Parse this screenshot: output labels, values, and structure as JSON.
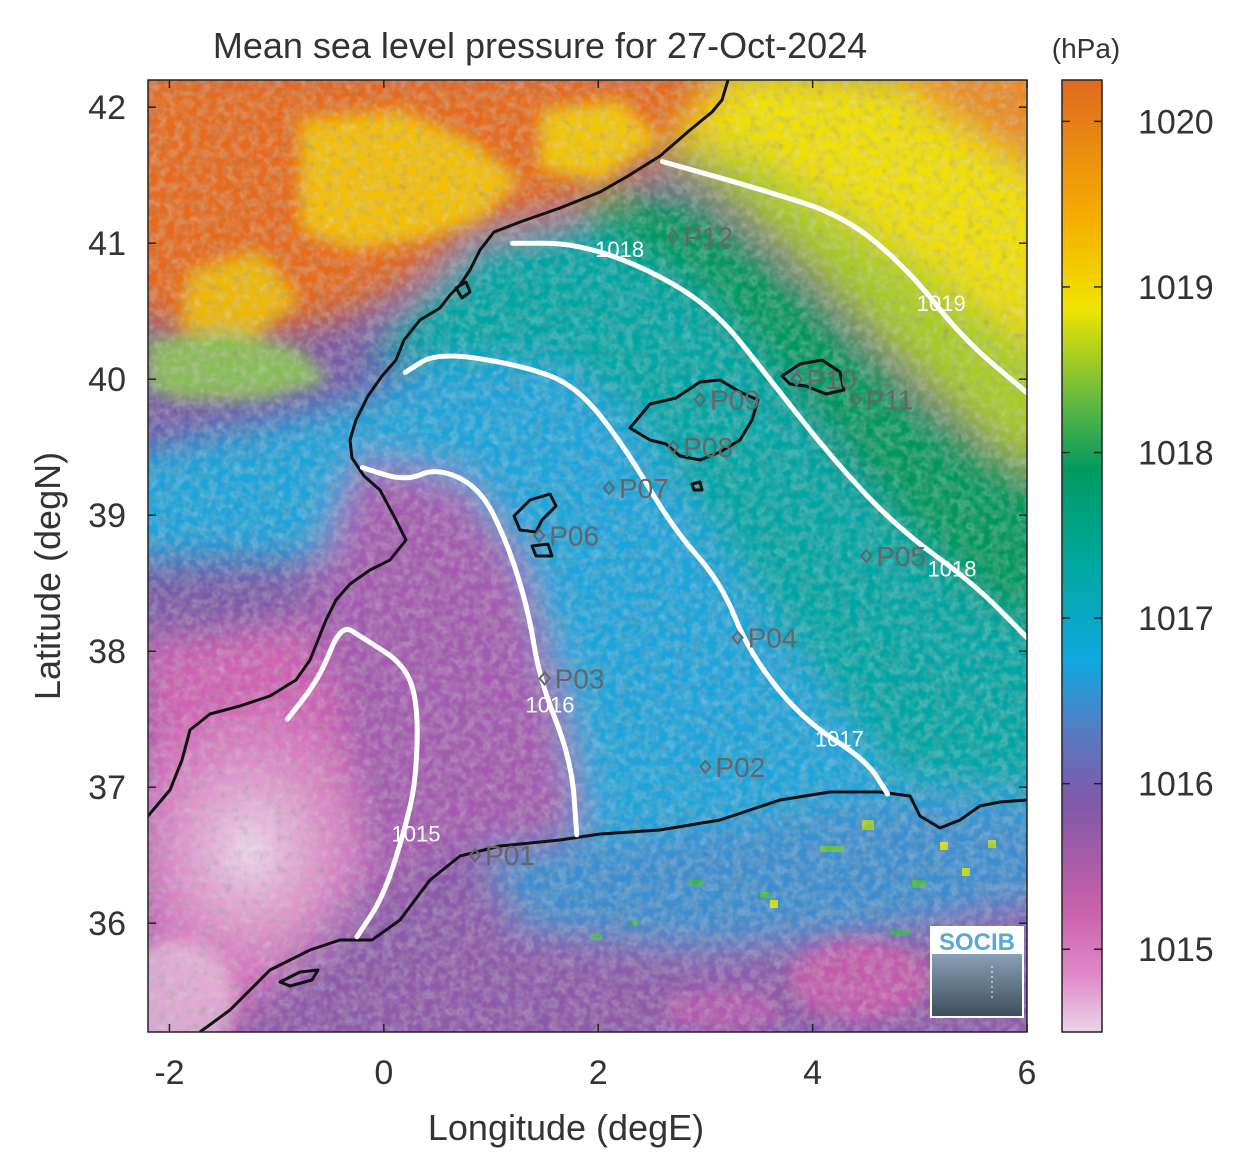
{
  "figure": {
    "title": "Mean sea level pressure for 27-Oct-2024",
    "xlabel": "Longitude (degE)",
    "ylabel": "Latitude (degN)",
    "colorbar_label": "(hPa)",
    "logo_text": "SOCIB"
  },
  "chart_data": {
    "type": "heatmap",
    "title": "Mean sea level pressure for 27-Oct-2024",
    "xlabel": "Longitude (degE)",
    "ylabel": "Latitude (degN)",
    "xlim": [
      -2.2,
      6.0
    ],
    "ylim": [
      35.2,
      42.2
    ],
    "x_ticks": [
      -2,
      0,
      2,
      4,
      6
    ],
    "y_ticks": [
      36,
      37,
      38,
      39,
      40,
      41,
      42
    ],
    "colorbar": {
      "label": "(hPa)",
      "range": [
        1014.5,
        1020.25
      ],
      "ticks": [
        1015,
        1016,
        1017,
        1018,
        1019,
        1020
      ],
      "colors": [
        "#e8c8e0",
        "#d060b0",
        "#7a5aa8",
        "#00a8e0",
        "#009a60",
        "#f0e000",
        "#e06a20"
      ]
    },
    "contours": [
      {
        "label": "1015",
        "value": 1015,
        "label_at": [
          0.3,
          36.6
        ],
        "points": [
          [
            -0.25,
            35.9
          ],
          [
            0.0,
            36.2
          ],
          [
            0.2,
            36.7
          ],
          [
            0.3,
            37.05
          ],
          [
            0.32,
            37.6
          ],
          [
            0.2,
            37.9
          ],
          [
            -0.2,
            38.1
          ],
          [
            -0.4,
            38.2
          ],
          [
            -0.6,
            37.8
          ],
          [
            -0.9,
            37.5
          ]
        ]
      },
      {
        "label": "1016",
        "value": 1016,
        "label_at": [
          1.55,
          37.55
        ],
        "points": [
          [
            1.8,
            36.65
          ],
          [
            1.75,
            37.2
          ],
          [
            1.45,
            37.8
          ],
          [
            1.35,
            38.3
          ],
          [
            1.15,
            38.8
          ],
          [
            0.9,
            39.2
          ],
          [
            0.5,
            39.35
          ],
          [
            0.2,
            39.25
          ],
          [
            -0.2,
            39.35
          ]
        ]
      },
      {
        "label": "1017",
        "value": 1017,
        "label_at": [
          4.25,
          37.3
        ],
        "points": [
          [
            4.7,
            36.95
          ],
          [
            4.5,
            37.2
          ],
          [
            3.9,
            37.5
          ],
          [
            3.4,
            38.0
          ],
          [
            3.15,
            38.5
          ],
          [
            2.7,
            38.9
          ],
          [
            2.25,
            39.5
          ],
          [
            1.8,
            39.95
          ],
          [
            1.3,
            40.1
          ],
          [
            0.5,
            40.2
          ],
          [
            0.2,
            40.05
          ]
        ]
      },
      {
        "label": "1018",
        "value": 1018,
        "label_at": [
          2.2,
          40.9
        ],
        "points": [
          [
            6.0,
            38.1
          ],
          [
            5.5,
            38.5
          ],
          [
            4.8,
            38.9
          ],
          [
            4.2,
            39.4
          ],
          [
            3.6,
            40.0
          ],
          [
            3.1,
            40.5
          ],
          [
            2.5,
            40.8
          ],
          [
            1.8,
            41.0
          ],
          [
            1.2,
            41.0
          ]
        ]
      },
      {
        "label": "1018",
        "value": 1018,
        "label_at": [
          5.3,
          38.55
        ],
        "points": []
      },
      {
        "label": "1019",
        "value": 1019,
        "label_at": [
          5.2,
          40.5
        ],
        "points": [
          [
            6.0,
            39.9
          ],
          [
            5.4,
            40.3
          ],
          [
            4.9,
            40.8
          ],
          [
            4.3,
            41.2
          ],
          [
            3.5,
            41.4
          ],
          [
            2.6,
            41.6
          ]
        ]
      }
    ],
    "stations": [
      {
        "name": "P01",
        "lon": 0.85,
        "lat": 36.5
      },
      {
        "name": "P02",
        "lon": 3.0,
        "lat": 37.15
      },
      {
        "name": "P03",
        "lon": 1.5,
        "lat": 37.8
      },
      {
        "name": "P04",
        "lon": 3.3,
        "lat": 38.1
      },
      {
        "name": "P05",
        "lon": 4.5,
        "lat": 38.7
      },
      {
        "name": "P06",
        "lon": 1.45,
        "lat": 38.85
      },
      {
        "name": "P07",
        "lon": 2.1,
        "lat": 39.2
      },
      {
        "name": "P08",
        "lon": 2.7,
        "lat": 39.5
      },
      {
        "name": "P09",
        "lon": 2.95,
        "lat": 39.85
      },
      {
        "name": "P10",
        "lon": 3.85,
        "lat": 40.0
      },
      {
        "name": "P11",
        "lon": 4.4,
        "lat": 39.85
      },
      {
        "name": "P12",
        "lon": 2.7,
        "lat": 41.05
      }
    ]
  }
}
